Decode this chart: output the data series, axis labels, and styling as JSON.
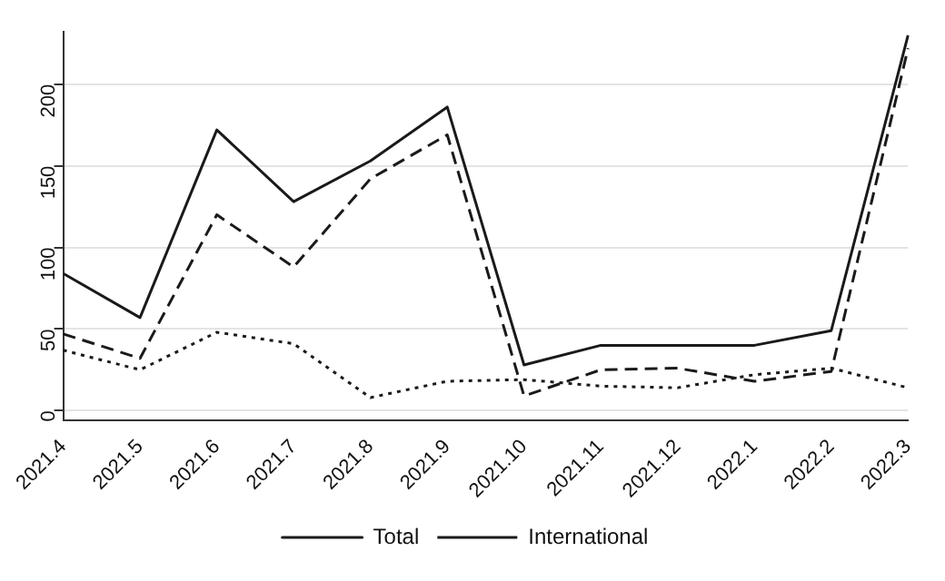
{
  "chart_data": {
    "type": "line",
    "categories": [
      "2021.4",
      "2021.5",
      "2021.6",
      "2021.7",
      "2021.8",
      "2021.9",
      "2021.10",
      "2021.11",
      "2021.12",
      "2022.1",
      "2022.2",
      "2022.3"
    ],
    "series": [
      {
        "name": "Total",
        "color": "#1a1a1a",
        "line_style": "solid",
        "values": [
          84,
          57,
          172,
          128,
          153,
          186,
          28,
          40,
          40,
          40,
          49,
          230
        ]
      },
      {
        "name": "International",
        "color": "#1a1a1a",
        "line_style": "dashed",
        "values": [
          47,
          32,
          120,
          88,
          142,
          169,
          9,
          25,
          26,
          18,
          24,
          222
        ]
      },
      {
        "color": "#1a1a1a",
        "line_style": "dotted",
        "values": [
          37,
          25,
          48,
          41,
          8,
          18,
          19,
          15,
          14,
          22,
          26,
          14
        ]
      }
    ],
    "ylim": [
      -6,
      232
    ],
    "yticks": [
      0,
      50,
      100,
      150,
      200
    ],
    "grid": "y",
    "legend": "bottom",
    "marker": "none"
  }
}
